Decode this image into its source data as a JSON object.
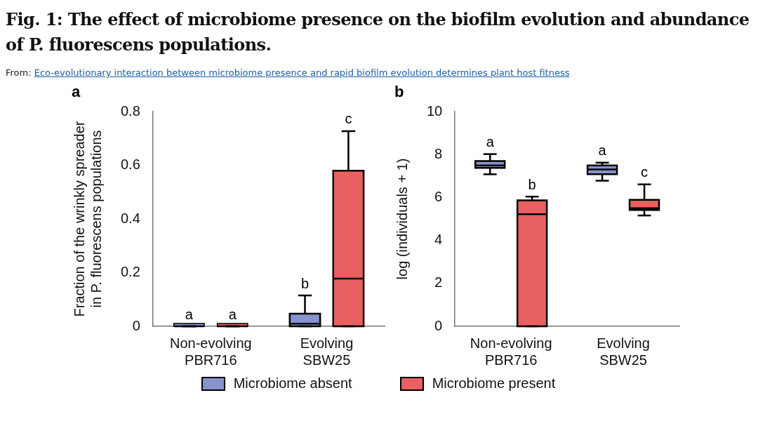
{
  "chart_data": [
    {
      "type": "box",
      "title": "Fig. 1: The effect of microbiome presence on the biofilm evolution and abundance of P. fluorescens populations.",
      "subtitle": "From: Eco-evolutionary interaction between microbiome presence and rapid biofilm evolution determines plant host fitness",
      "ylabel": "Fraction of the wrinkly spreader in P. fluorescens populations",
      "categories": [
        "Non-evolving PBR716",
        "Evolving SBW25"
      ],
      "ylim": [
        0,
        0.8
      ],
      "yticks": [
        0,
        0.2,
        0.4,
        0.6,
        0.8
      ],
      "legend": "bottom",
      "series": [
        {
          "name": "Microbiome absent",
          "color": "#8793cc",
          "boxes": [
            {
              "low": 0,
              "q1": 0,
              "median": 0,
              "q3": 0,
              "high": 0
            },
            {
              "low": 0,
              "q1": 0,
              "median": 0.01,
              "q3": 0.047,
              "high": 0.115
            }
          ]
        },
        {
          "name": "Microbiome present",
          "color": "#e8605f",
          "boxes": [
            {
              "low": 0,
              "q1": 0,
              "median": 0,
              "q3": 0,
              "high": 0
            },
            {
              "low": 0,
              "q1": 0,
              "median": 0.178,
              "q3": 0.58,
              "high": 0.727
            }
          ]
        }
      ],
      "annotations": [
        "a",
        "a",
        "a",
        "b",
        "c"
      ]
    },
    {
      "type": "box",
      "ylabel": "log (individuals + 1)",
      "categories": [
        "Non-evolving PBR716",
        "Evolving SBW25"
      ],
      "ylim": [
        0,
        10
      ],
      "yticks": [
        0,
        2,
        4,
        6,
        8,
        10
      ],
      "series": [
        {
          "color": "#8793cc",
          "boxes": [
            {
              "low": 7.08,
              "q1": 7.38,
              "median": 7.49,
              "q3": 7.7,
              "high": 8.02
            },
            {
              "low": 6.78,
              "q1": 7.08,
              "median": 7.3,
              "q3": 7.49,
              "high": 7.62
            }
          ]
        },
        {
          "color": "#e8605f",
          "boxes": [
            {
              "low": 0,
              "q1": 0,
              "median": 5.22,
              "q3": 5.87,
              "high": 6.04
            },
            {
              "low": 5.16,
              "q1": 5.42,
              "median": 5.5,
              "q3": 5.89,
              "high": 6.61
            }
          ]
        }
      ],
      "annotations": [
        "b",
        "a",
        "b",
        "a",
        "c"
      ]
    }
  ]
}
